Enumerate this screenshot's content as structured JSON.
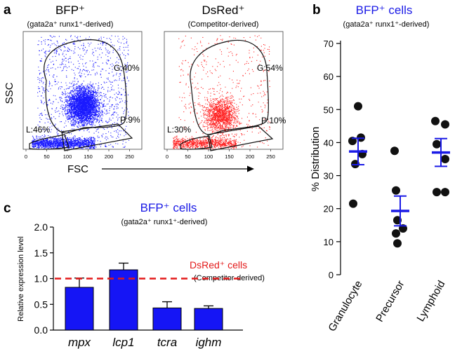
{
  "panel_letters": {
    "a": "a",
    "b": "b",
    "c": "c"
  },
  "panel_a": {
    "plot1": {
      "title": "BFP⁺",
      "subtitle": "(gata2a⁺ runx1⁺-derived)",
      "gates": {
        "G": "G:40%",
        "P": "P:9%",
        "L": "L:46%"
      }
    },
    "plot2": {
      "title": "DsRed⁺",
      "subtitle": "(Competitor-derived)",
      "gates": {
        "G": "G:54%",
        "P": "P:10%",
        "L": "L:30%"
      }
    },
    "ylabel": "SSC",
    "xlabel": "FSC",
    "xticks": [
      "0",
      "50",
      "100",
      "150",
      "200",
      "250"
    ],
    "colors": {
      "bfp": "#1a1aff",
      "dsred": "#ff2020"
    }
  },
  "chart_data": [
    {
      "type": "scatter",
      "panel": "b",
      "title": "BFP⁺ cells",
      "subtitle": "(gata2a⁺ runx1⁺-derived)",
      "ylabel": "% Distribution",
      "ylim": [
        0,
        70
      ],
      "yticks": [
        "0",
        "10",
        "20",
        "30",
        "40",
        "50",
        "60",
        "70"
      ],
      "categories": [
        "Granulocyte",
        "Precursor",
        "Lymphoid"
      ],
      "points": [
        [
          51,
          41.5,
          40.5,
          36.5,
          33.5,
          21.5
        ],
        [
          37.5,
          25.5,
          16.5,
          14,
          12.5,
          9.5
        ],
        [
          46.5,
          45.5,
          39.5,
          35,
          25,
          25
        ]
      ],
      "mean": [
        37.3,
        19.3,
        37
      ],
      "sem": [
        4,
        4.5,
        4.2
      ],
      "colors": {
        "points": "#111111",
        "mean": "#1a1ae6"
      }
    },
    {
      "type": "bar",
      "panel": "c",
      "title": "BFP⁺ cells",
      "subtitle": "(gata2a⁺ runx1⁺-derived)",
      "ylabel": "Relative expression level",
      "ylim": [
        0,
        2.0
      ],
      "yticks": [
        "0.0",
        "0.5",
        "1.0",
        "1.5",
        "2.0"
      ],
      "categories": [
        "mpx",
        "lcp1",
        "tcra",
        "ighm"
      ],
      "values": [
        0.83,
        1.17,
        0.43,
        0.42
      ],
      "errors": [
        0.18,
        0.13,
        0.12,
        0.05
      ],
      "reference": {
        "value": 1.0,
        "label": "DsRed⁺ cells",
        "sublabel": "(Competitor-derived)"
      },
      "colors": {
        "bar": "#1515f5",
        "reference": "#e31a1a"
      }
    }
  ]
}
